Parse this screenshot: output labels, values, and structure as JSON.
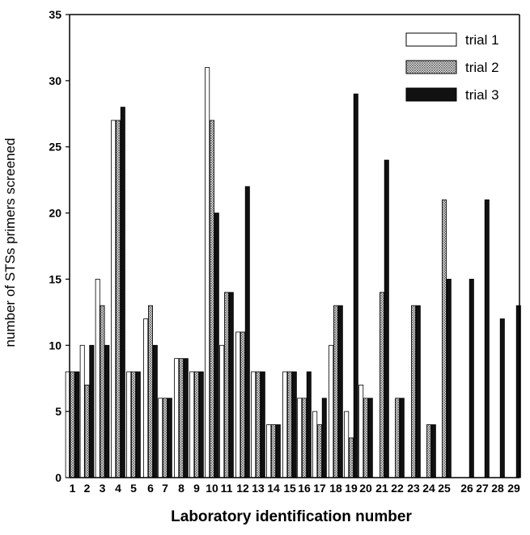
{
  "chart_data": {
    "type": "bar",
    "title": "",
    "xlabel": "Laboratory identification number",
    "ylabel": "number of STSs primers screened",
    "ylim": [
      0,
      35
    ],
    "yticks": [
      0,
      5,
      10,
      15,
      20,
      25,
      30,
      35
    ],
    "categories": [
      "1",
      "2",
      "3",
      "4",
      "5",
      "6",
      "7",
      "8",
      "9",
      "10",
      "11",
      "12",
      "13",
      "14",
      "15",
      "16",
      "17",
      "18",
      "19",
      "20",
      "21",
      "22",
      "23",
      "24",
      "25",
      "26",
      "27",
      "28",
      "29"
    ],
    "legend_position": "top-right",
    "grid": false,
    "series": [
      {
        "name": "trial 1",
        "style": "white",
        "values": [
          8,
          10,
          15,
          27,
          8,
          12,
          6,
          9,
          8,
          31,
          10,
          11,
          8,
          4,
          8,
          6,
          5,
          10,
          5,
          7,
          0,
          0,
          0,
          0,
          0,
          0,
          0,
          0,
          0
        ]
      },
      {
        "name": "trial 2",
        "style": "crosshatch",
        "values": [
          8,
          7,
          13,
          27,
          8,
          13,
          6,
          9,
          8,
          27,
          14,
          11,
          8,
          4,
          8,
          6,
          4,
          13,
          3,
          6,
          14,
          6,
          13,
          4,
          21,
          0,
          0,
          0,
          0
        ]
      },
      {
        "name": "trial 3",
        "style": "black",
        "values": [
          8,
          10,
          10,
          28,
          8,
          10,
          6,
          9,
          8,
          20,
          14,
          22,
          8,
          4,
          8,
          8,
          6,
          13,
          29,
          6,
          24,
          6,
          13,
          4,
          15,
          15,
          21,
          12,
          13
        ]
      }
    ]
  }
}
